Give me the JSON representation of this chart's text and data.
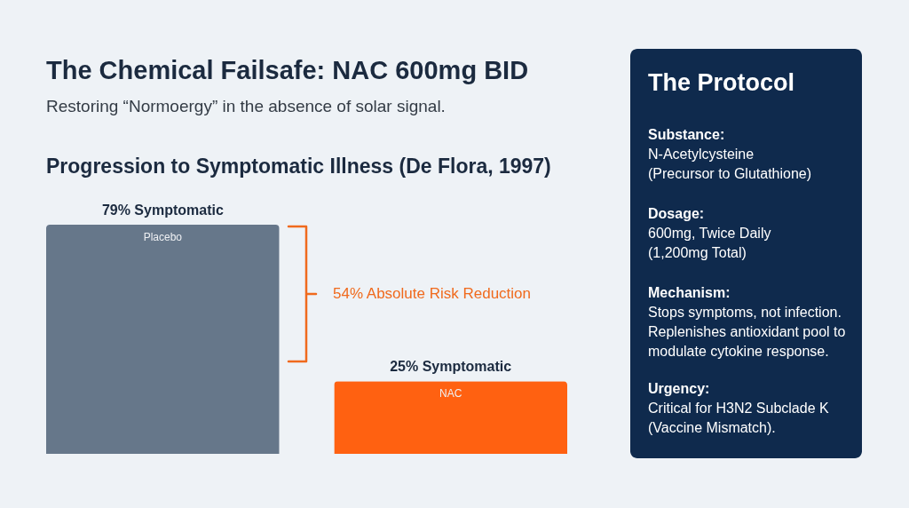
{
  "chart_data": {
    "type": "bar",
    "title": "The Chemical Failsafe: NAC 600mg BID",
    "subtitle": "Restoring “Normoergy” in the absence of solar signal.",
    "categories": [
      "Placebo",
      "NAC"
    ],
    "values": [
      79,
      25
    ],
    "colors": [
      "#66778a",
      "#ff6111"
    ],
    "value_labels": [
      "79% Symptomatic",
      "25% Symptomatic"
    ],
    "annotations": [
      "Progression to Symptomatic Illness (De Flora, 1997)",
      "54% Absolute Risk Reduction",
      "The Protocol",
      "Substance:",
      "N-Acetylcysteine",
      "(Precursor to Glutathione)",
      "Dosage:",
      "600mg, Twice Daily",
      "(1,200mg Total)",
      "Mechanism:",
      "Stops symptoms, not infection.",
      "Replenishes antioxidant pool to",
      "modulate cytokine response.",
      "Urgency:",
      "Critical for H3N2 Subclade K",
      "(Vaccine Mismatch)."
    ]
  }
}
